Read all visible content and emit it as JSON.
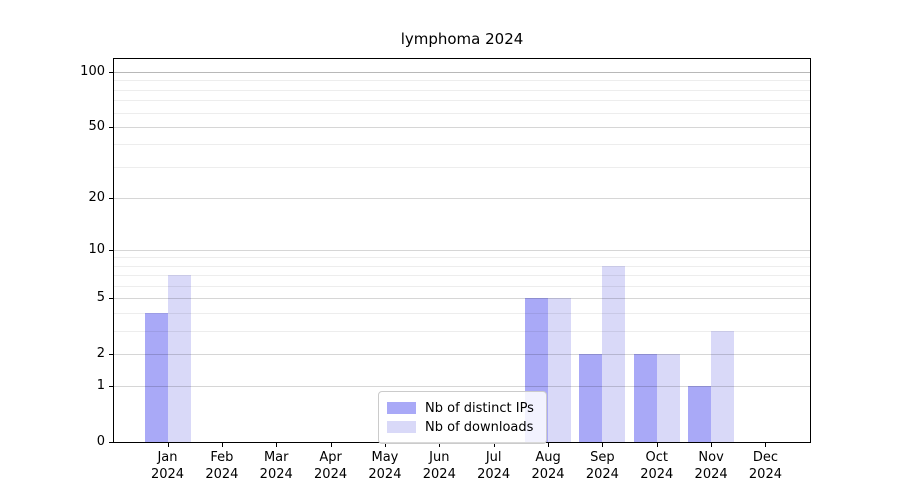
{
  "title": "lymphoma 2024",
  "chart_data": {
    "type": "bar",
    "title": "lymphoma 2024",
    "categories": [
      "Jan 2024",
      "Feb 2024",
      "Mar 2024",
      "Apr 2024",
      "May 2024",
      "Jun 2024",
      "Jul 2024",
      "Aug 2024",
      "Sep 2024",
      "Oct 2024",
      "Nov 2024",
      "Dec 2024"
    ],
    "series": [
      {
        "name": "Nb of distinct IPs",
        "color": "#a9a9f7",
        "values": [
          4,
          0,
          0,
          0,
          0,
          0,
          0,
          5,
          2,
          2,
          1,
          0
        ]
      },
      {
        "name": "Nb of downloads",
        "color": "#d9d9f8",
        "values": [
          7,
          0,
          0,
          0,
          0,
          0,
          0,
          5,
          8,
          2,
          3,
          0
        ]
      }
    ],
    "xlabel": "",
    "ylabel": "",
    "yscale": "log1p",
    "yticks": [
      0,
      1,
      2,
      5,
      10,
      20,
      50,
      100
    ],
    "minor_yticks": [
      3,
      4,
      6,
      7,
      8,
      9,
      30,
      40,
      60,
      70,
      80,
      90
    ],
    "ylim": [
      0,
      118
    ],
    "grid": true,
    "legend_position": "lower center inside"
  }
}
